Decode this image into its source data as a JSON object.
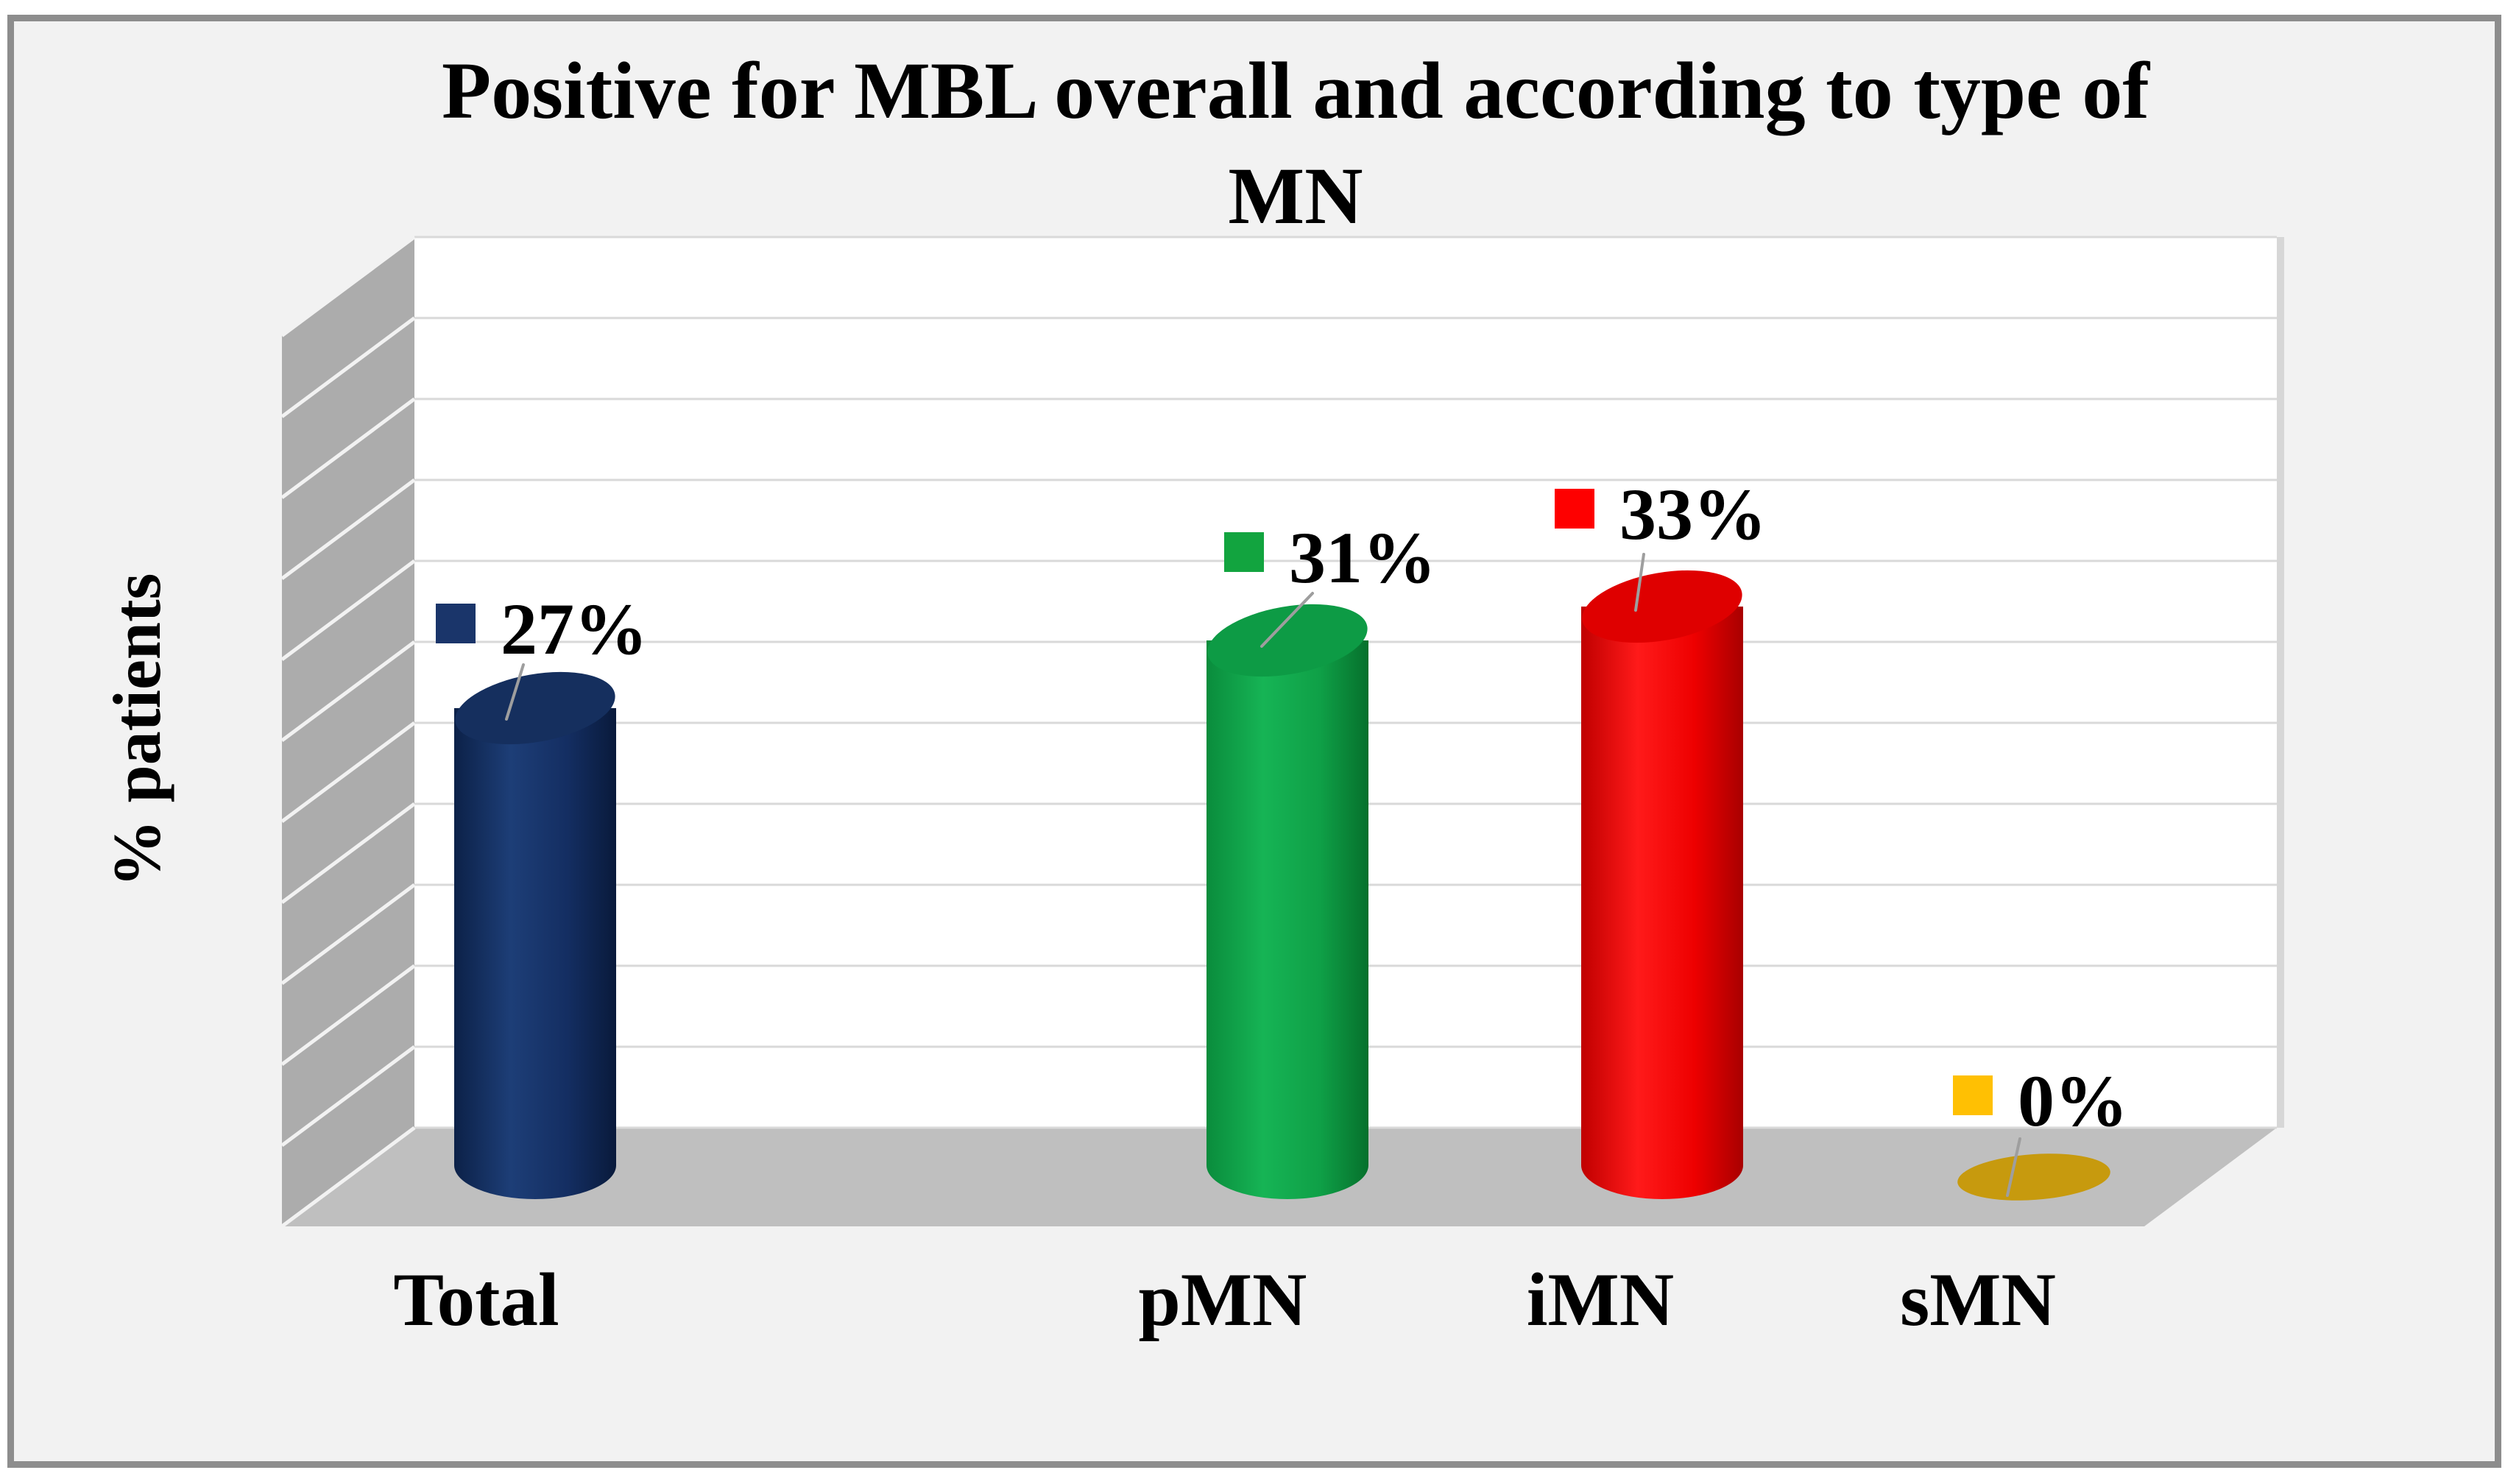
{
  "title": {
    "line1": "Positive for MBL overall and according to type of",
    "line2": "MN"
  },
  "axes": {
    "y_label": "% patients",
    "x_labels": [
      "Total",
      "pMN",
      "iMN",
      "sMN"
    ]
  },
  "chart_data": {
    "type": "bar",
    "subtype": "3d-cylinder",
    "title": "Positive for MBL overall and according to type of MN",
    "xlabel": "",
    "ylabel": "% patients",
    "categories": [
      "Total",
      "pMN",
      "iMN",
      "sMN"
    ],
    "values": [
      27,
      31,
      33,
      0
    ],
    "point_labels": [
      "27%",
      "31%",
      "33%",
      "0%"
    ],
    "ylim": [
      0,
      55
    ],
    "grid": "horizontal",
    "legend": "none",
    "series": [
      {
        "name": "Total",
        "value": 27,
        "label": "27%",
        "legend_color": "#1A356A",
        "body_gradient": [
          "#0C2148",
          "#1D3E77",
          "#142E62",
          "#091A3B"
        ],
        "top_color": "#152F5E"
      },
      {
        "name": "pMN",
        "value": 31,
        "label": "31%",
        "legend_color": "#12A43F",
        "body_gradient": [
          "#0A8C3C",
          "#16B455",
          "#0FA047",
          "#06702C"
        ],
        "top_color": "#0D9B45"
      },
      {
        "name": "iMN",
        "value": 33,
        "label": "33%",
        "legend_color": "#FE0000",
        "body_gradient": [
          "#C00000",
          "#FF1A1A",
          "#EE0000",
          "#A80000"
        ],
        "top_color": "#DF0000"
      },
      {
        "name": "sMN",
        "value": 0,
        "label": "0%",
        "legend_color": "#FFC003",
        "body_gradient": [
          "#C79A0E"
        ],
        "top_color": "#C79A0E"
      }
    ],
    "colors": {
      "wall": "#FFFFFF",
      "side_wall": "#ACACAC",
      "floor": "#BFBFBF",
      "gridline": "#D9D9D9",
      "side_stripe": "#F2F2F2",
      "wall_shadow": "#CFCFCF",
      "leader_line": "#9E9E9E",
      "background": "#F2F2F2",
      "frame_border": "#8D8D8D",
      "text": "#000000"
    }
  }
}
